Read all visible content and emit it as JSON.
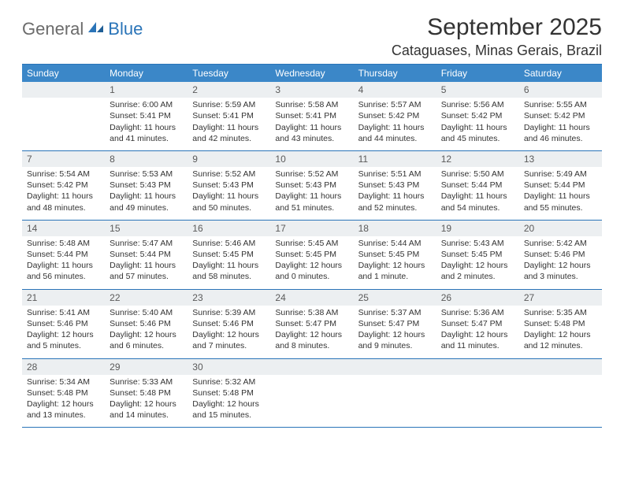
{
  "logo": {
    "general": "General",
    "blue": "Blue"
  },
  "title": "September 2025",
  "location": "Cataguases, Minas Gerais, Brazil",
  "colors": {
    "header_bg": "#3b87c8",
    "header_text": "#ffffff",
    "rule": "#2a74b8",
    "daynum_bg": "#eceff1",
    "daynum_text": "#5a5a5a",
    "body_text": "#333333",
    "logo_gray": "#6b6b6b",
    "logo_blue": "#2a74b8",
    "page_bg": "#ffffff"
  },
  "typography": {
    "title_fontsize": 30,
    "location_fontsize": 18,
    "dayheader_fontsize": 12,
    "cell_fontsize": 10.5,
    "logo_fontsize": 22
  },
  "day_headers": [
    "Sunday",
    "Monday",
    "Tuesday",
    "Wednesday",
    "Thursday",
    "Friday",
    "Saturday"
  ],
  "weeks": [
    [
      {
        "num": "",
        "lines": []
      },
      {
        "num": "1",
        "lines": [
          "Sunrise: 6:00 AM",
          "Sunset: 5:41 PM",
          "Daylight: 11 hours and 41 minutes."
        ]
      },
      {
        "num": "2",
        "lines": [
          "Sunrise: 5:59 AM",
          "Sunset: 5:41 PM",
          "Daylight: 11 hours and 42 minutes."
        ]
      },
      {
        "num": "3",
        "lines": [
          "Sunrise: 5:58 AM",
          "Sunset: 5:41 PM",
          "Daylight: 11 hours and 43 minutes."
        ]
      },
      {
        "num": "4",
        "lines": [
          "Sunrise: 5:57 AM",
          "Sunset: 5:42 PM",
          "Daylight: 11 hours and 44 minutes."
        ]
      },
      {
        "num": "5",
        "lines": [
          "Sunrise: 5:56 AM",
          "Sunset: 5:42 PM",
          "Daylight: 11 hours and 45 minutes."
        ]
      },
      {
        "num": "6",
        "lines": [
          "Sunrise: 5:55 AM",
          "Sunset: 5:42 PM",
          "Daylight: 11 hours and 46 minutes."
        ]
      }
    ],
    [
      {
        "num": "7",
        "lines": [
          "Sunrise: 5:54 AM",
          "Sunset: 5:42 PM",
          "Daylight: 11 hours and 48 minutes."
        ]
      },
      {
        "num": "8",
        "lines": [
          "Sunrise: 5:53 AM",
          "Sunset: 5:43 PM",
          "Daylight: 11 hours and 49 minutes."
        ]
      },
      {
        "num": "9",
        "lines": [
          "Sunrise: 5:52 AM",
          "Sunset: 5:43 PM",
          "Daylight: 11 hours and 50 minutes."
        ]
      },
      {
        "num": "10",
        "lines": [
          "Sunrise: 5:52 AM",
          "Sunset: 5:43 PM",
          "Daylight: 11 hours and 51 minutes."
        ]
      },
      {
        "num": "11",
        "lines": [
          "Sunrise: 5:51 AM",
          "Sunset: 5:43 PM",
          "Daylight: 11 hours and 52 minutes."
        ]
      },
      {
        "num": "12",
        "lines": [
          "Sunrise: 5:50 AM",
          "Sunset: 5:44 PM",
          "Daylight: 11 hours and 54 minutes."
        ]
      },
      {
        "num": "13",
        "lines": [
          "Sunrise: 5:49 AM",
          "Sunset: 5:44 PM",
          "Daylight: 11 hours and 55 minutes."
        ]
      }
    ],
    [
      {
        "num": "14",
        "lines": [
          "Sunrise: 5:48 AM",
          "Sunset: 5:44 PM",
          "Daylight: 11 hours and 56 minutes."
        ]
      },
      {
        "num": "15",
        "lines": [
          "Sunrise: 5:47 AM",
          "Sunset: 5:44 PM",
          "Daylight: 11 hours and 57 minutes."
        ]
      },
      {
        "num": "16",
        "lines": [
          "Sunrise: 5:46 AM",
          "Sunset: 5:45 PM",
          "Daylight: 11 hours and 58 minutes."
        ]
      },
      {
        "num": "17",
        "lines": [
          "Sunrise: 5:45 AM",
          "Sunset: 5:45 PM",
          "Daylight: 12 hours and 0 minutes."
        ]
      },
      {
        "num": "18",
        "lines": [
          "Sunrise: 5:44 AM",
          "Sunset: 5:45 PM",
          "Daylight: 12 hours and 1 minute."
        ]
      },
      {
        "num": "19",
        "lines": [
          "Sunrise: 5:43 AM",
          "Sunset: 5:45 PM",
          "Daylight: 12 hours and 2 minutes."
        ]
      },
      {
        "num": "20",
        "lines": [
          "Sunrise: 5:42 AM",
          "Sunset: 5:46 PM",
          "Daylight: 12 hours and 3 minutes."
        ]
      }
    ],
    [
      {
        "num": "21",
        "lines": [
          "Sunrise: 5:41 AM",
          "Sunset: 5:46 PM",
          "Daylight: 12 hours and 5 minutes."
        ]
      },
      {
        "num": "22",
        "lines": [
          "Sunrise: 5:40 AM",
          "Sunset: 5:46 PM",
          "Daylight: 12 hours and 6 minutes."
        ]
      },
      {
        "num": "23",
        "lines": [
          "Sunrise: 5:39 AM",
          "Sunset: 5:46 PM",
          "Daylight: 12 hours and 7 minutes."
        ]
      },
      {
        "num": "24",
        "lines": [
          "Sunrise: 5:38 AM",
          "Sunset: 5:47 PM",
          "Daylight: 12 hours and 8 minutes."
        ]
      },
      {
        "num": "25",
        "lines": [
          "Sunrise: 5:37 AM",
          "Sunset: 5:47 PM",
          "Daylight: 12 hours and 9 minutes."
        ]
      },
      {
        "num": "26",
        "lines": [
          "Sunrise: 5:36 AM",
          "Sunset: 5:47 PM",
          "Daylight: 12 hours and 11 minutes."
        ]
      },
      {
        "num": "27",
        "lines": [
          "Sunrise: 5:35 AM",
          "Sunset: 5:48 PM",
          "Daylight: 12 hours and 12 minutes."
        ]
      }
    ],
    [
      {
        "num": "28",
        "lines": [
          "Sunrise: 5:34 AM",
          "Sunset: 5:48 PM",
          "Daylight: 12 hours and 13 minutes."
        ]
      },
      {
        "num": "29",
        "lines": [
          "Sunrise: 5:33 AM",
          "Sunset: 5:48 PM",
          "Daylight: 12 hours and 14 minutes."
        ]
      },
      {
        "num": "30",
        "lines": [
          "Sunrise: 5:32 AM",
          "Sunset: 5:48 PM",
          "Daylight: 12 hours and 15 minutes."
        ]
      },
      {
        "num": "",
        "lines": []
      },
      {
        "num": "",
        "lines": []
      },
      {
        "num": "",
        "lines": []
      },
      {
        "num": "",
        "lines": []
      }
    ]
  ]
}
